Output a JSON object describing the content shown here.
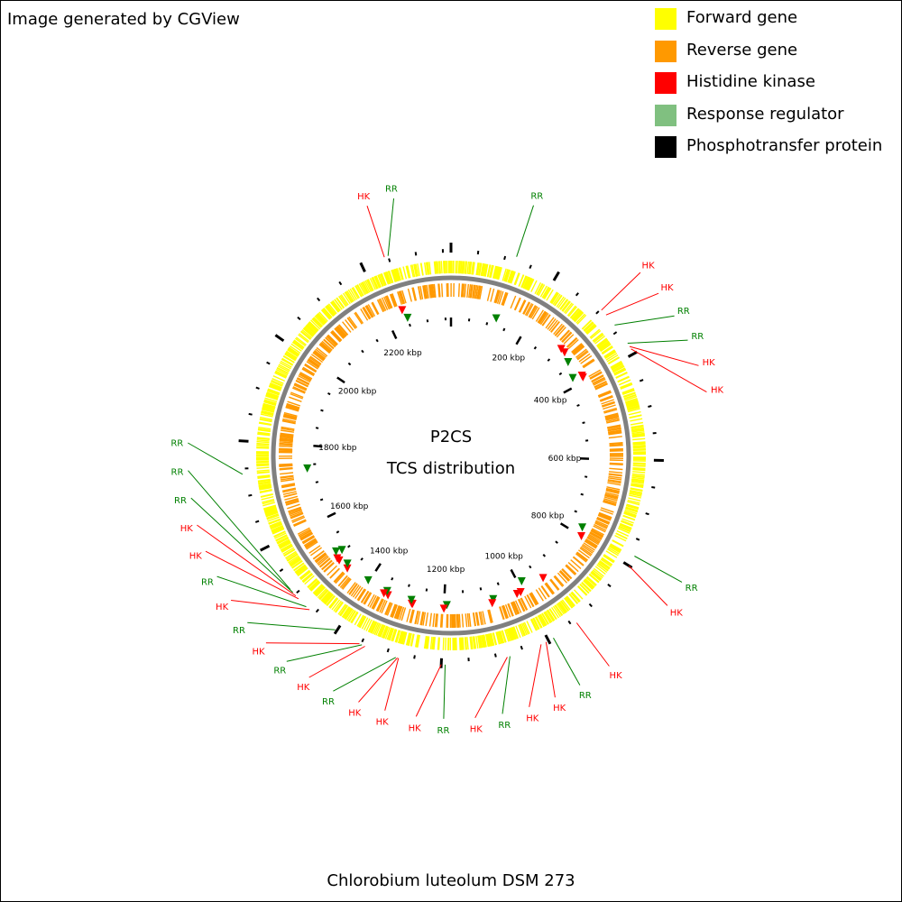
{
  "credit": "Image generated by CGView",
  "title": [
    "P2CS",
    "TCS distribution"
  ],
  "genome_name": "Chlorobium luteolum DSM 273",
  "legend": [
    {
      "label": "Forward gene",
      "color": "#ffff00"
    },
    {
      "label": "Reverse gene",
      "color": "#ff9900"
    },
    {
      "label": "Histidine kinase",
      "color": "#ff0000"
    },
    {
      "label": "Response regulator",
      "color": "#80c080"
    },
    {
      "label": "Phosphotransfer protein",
      "color": "#000000"
    }
  ],
  "colors": {
    "forward": "#ffff00",
    "reverse": "#ff9900",
    "hk": "#ff0000",
    "rr": "#008000",
    "backbone": "#808080",
    "tick": "#000000"
  },
  "genome": {
    "length_kbp": 2365,
    "tick_labels": [
      "200 kbp",
      "400 kbp",
      "600 kbp",
      "800 kbp",
      "1000 kbp",
      "1200 kbp",
      "1400 kbp",
      "1600 kbp",
      "1800 kbp",
      "2000 kbp",
      "2200 kbp"
    ]
  },
  "features": [
    {
      "label": "RR",
      "type": "rr",
      "pos_kbp": 120
    },
    {
      "label": "HK",
      "type": "hk",
      "pos_kbp": 302
    },
    {
      "label": "HK",
      "type": "hk",
      "pos_kbp": 314
    },
    {
      "label": "RR",
      "type": "rr",
      "pos_kbp": 338
    },
    {
      "label": "RR",
      "type": "rr",
      "pos_kbp": 378
    },
    {
      "label": "HK",
      "type": "hk",
      "pos_kbp": 385
    },
    {
      "label": "HK",
      "type": "hk",
      "pos_kbp": 390
    },
    {
      "label": "RR",
      "type": "rr",
      "pos_kbp": 780
    },
    {
      "label": "HK",
      "type": "hk",
      "pos_kbp": 800
    },
    {
      "label": "HK",
      "type": "hk",
      "pos_kbp": 940
    },
    {
      "label": "RR",
      "type": "rr",
      "pos_kbp": 990
    },
    {
      "label": "HK",
      "type": "hk",
      "pos_kbp": 1005
    },
    {
      "label": "HK",
      "type": "hk",
      "pos_kbp": 1015
    },
    {
      "label": "RR",
      "type": "rr",
      "pos_kbp": 1075
    },
    {
      "label": "HK",
      "type": "hk",
      "pos_kbp": 1080
    },
    {
      "label": "RR",
      "type": "rr",
      "pos_kbp": 1193
    },
    {
      "label": "HK",
      "type": "hk",
      "pos_kbp": 1200
    },
    {
      "label": "HK",
      "type": "hk",
      "pos_kbp": 1278
    },
    {
      "label": "HK",
      "type": "hk",
      "pos_kbp": 1280
    },
    {
      "label": "RR",
      "type": "rr",
      "pos_kbp": 1283
    },
    {
      "label": "HK",
      "type": "hk",
      "pos_kbp": 1342
    },
    {
      "label": "RR",
      "type": "rr",
      "pos_kbp": 1348
    },
    {
      "label": "HK",
      "type": "hk",
      "pos_kbp": 1353
    },
    {
      "label": "RR",
      "type": "rr",
      "pos_kbp": 1403
    },
    {
      "label": "HK",
      "type": "hk",
      "pos_kbp": 1462
    },
    {
      "label": "RR",
      "type": "rr",
      "pos_kbp": 1470
    },
    {
      "label": "HK",
      "type": "hk",
      "pos_kbp": 1490
    },
    {
      "label": "HK",
      "type": "hk",
      "pos_kbp": 1497
    },
    {
      "label": "RR",
      "type": "rr",
      "pos_kbp": 1505
    },
    {
      "label": "RR",
      "type": "rr",
      "pos_kbp": 1512
    },
    {
      "label": "RR",
      "type": "rr",
      "pos_kbp": 1740
    },
    {
      "label": "HK",
      "type": "hk",
      "pos_kbp": 2243
    },
    {
      "label": "RR",
      "type": "rr",
      "pos_kbp": 2250
    }
  ]
}
